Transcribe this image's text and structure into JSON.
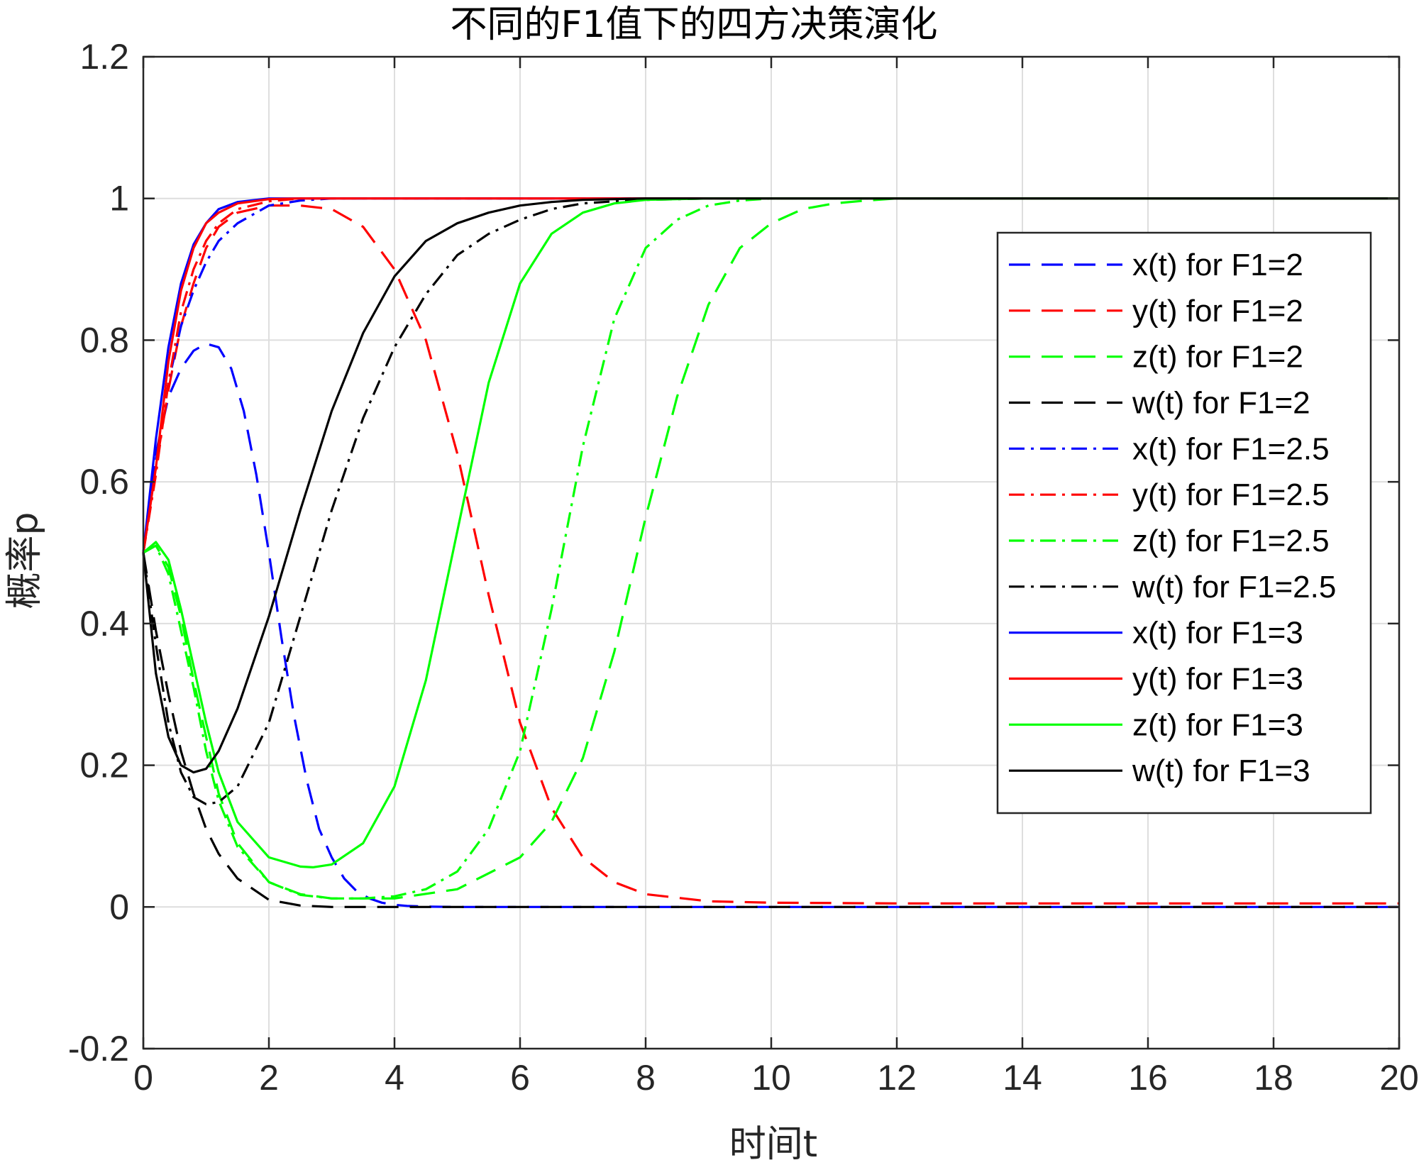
{
  "chart_data": {
    "type": "line",
    "title": "不同的F1值下的四方决策演化",
    "xlabel": "时间t",
    "ylabel": "概率p",
    "xlim": [
      0,
      20
    ],
    "ylim": [
      -0.2,
      1.2
    ],
    "xticks": [
      0,
      2,
      4,
      6,
      8,
      10,
      12,
      14,
      16,
      18,
      20
    ],
    "yticks": [
      -0.2,
      0,
      0.2,
      0.4,
      0.6,
      0.8,
      1,
      1.2
    ],
    "xtick_labels": [
      "0",
      "2",
      "4",
      "6",
      "8",
      "10",
      "12",
      "14",
      "16",
      "18",
      "20"
    ],
    "ytick_labels": [
      "-0.2",
      "0",
      "0.2",
      "0.4",
      "0.6",
      "0.8",
      "1",
      "1.2"
    ],
    "grid": true,
    "legend_position": "right",
    "colors": {
      "x": "#0000ff",
      "y": "#ff0000",
      "z": "#00ff00",
      "w": "#000000"
    },
    "series": [
      {
        "name": "x(t) for F1=2",
        "color": "#0000ff",
        "style": "dashed",
        "x": [
          0,
          0.2,
          0.4,
          0.6,
          0.8,
          1.0,
          1.2,
          1.4,
          1.6,
          1.8,
          2.0,
          2.2,
          2.4,
          2.6,
          2.8,
          3.0,
          3.2,
          3.4,
          3.6,
          3.8,
          4.0,
          4.2,
          4.5,
          5,
          6,
          8,
          10,
          14,
          20
        ],
        "y": [
          0.5,
          0.64,
          0.72,
          0.76,
          0.785,
          0.795,
          0.79,
          0.76,
          0.7,
          0.61,
          0.5,
          0.38,
          0.27,
          0.18,
          0.11,
          0.07,
          0.04,
          0.022,
          0.012,
          0.006,
          0.003,
          0.0015,
          0.0005,
          0,
          0,
          0,
          0,
          0,
          0
        ]
      },
      {
        "name": "y(t) for F1=2",
        "color": "#ff0000",
        "style": "dashed",
        "x": [
          0,
          0.2,
          0.4,
          0.6,
          0.8,
          1.0,
          1.2,
          1.5,
          2.0,
          2.5,
          3.0,
          3.5,
          4.0,
          4.5,
          5.0,
          5.5,
          6.0,
          6.5,
          7.0,
          7.5,
          8.0,
          9,
          10,
          12,
          15,
          20
        ],
        "y": [
          0.5,
          0.62,
          0.73,
          0.82,
          0.88,
          0.93,
          0.96,
          0.98,
          0.99,
          0.99,
          0.985,
          0.96,
          0.9,
          0.8,
          0.64,
          0.44,
          0.26,
          0.14,
          0.07,
          0.035,
          0.018,
          0.008,
          0.006,
          0.005,
          0.005,
          0.005
        ]
      },
      {
        "name": "z(t) for F1=2",
        "color": "#00ff00",
        "style": "dashed",
        "x": [
          0,
          0.2,
          0.4,
          0.6,
          0.8,
          1.0,
          1.2,
          1.5,
          2.0,
          2.5,
          3.0,
          4.0,
          5.0,
          6.0,
          6.5,
          7.0,
          7.5,
          8.0,
          8.5,
          9.0,
          9.5,
          10.0,
          10.5,
          11.0,
          11.5,
          12,
          14,
          20
        ],
        "y": [
          0.5,
          0.51,
          0.48,
          0.41,
          0.32,
          0.24,
          0.16,
          0.09,
          0.035,
          0.018,
          0.012,
          0.012,
          0.025,
          0.07,
          0.12,
          0.21,
          0.36,
          0.55,
          0.72,
          0.85,
          0.93,
          0.965,
          0.985,
          0.993,
          0.997,
          1,
          1,
          1
        ]
      },
      {
        "name": "w(t) for F1=2",
        "color": "#000000",
        "style": "dashed",
        "x": [
          0,
          0.2,
          0.4,
          0.6,
          0.8,
          1.0,
          1.2,
          1.5,
          2.0,
          2.5,
          3.0,
          4,
          6,
          10,
          20
        ],
        "y": [
          0.5,
          0.39,
          0.3,
          0.22,
          0.16,
          0.11,
          0.075,
          0.04,
          0.01,
          0.002,
          0,
          0,
          0,
          0,
          0
        ]
      },
      {
        "name": "x(t) for F1=2.5",
        "color": "#0000ff",
        "style": "dashdot",
        "x": [
          0,
          0.2,
          0.4,
          0.6,
          0.8,
          1.0,
          1.2,
          1.5,
          2.0,
          2.5,
          3.0,
          4,
          6,
          10,
          20
        ],
        "y": [
          0.5,
          0.63,
          0.74,
          0.82,
          0.87,
          0.91,
          0.94,
          0.965,
          0.99,
          0.997,
          1,
          1,
          1,
          1,
          1
        ]
      },
      {
        "name": "y(t) for F1=2.5",
        "color": "#ff0000",
        "style": "dashdot",
        "x": [
          0,
          0.2,
          0.4,
          0.6,
          0.8,
          1.0,
          1.2,
          1.5,
          2.0,
          2.5,
          3.0,
          4,
          6,
          10,
          20
        ],
        "y": [
          0.5,
          0.61,
          0.74,
          0.84,
          0.9,
          0.94,
          0.965,
          0.985,
          0.996,
          1,
          1,
          1,
          1,
          1,
          1
        ]
      },
      {
        "name": "z(t) for F1=2.5",
        "color": "#00ff00",
        "style": "dashdot",
        "x": [
          0,
          0.2,
          0.4,
          0.6,
          0.8,
          1.0,
          1.2,
          1.5,
          2.0,
          2.5,
          3.0,
          3.5,
          4.0,
          4.5,
          5.0,
          5.5,
          6.0,
          6.5,
          7.0,
          7.5,
          8.0,
          8.5,
          9.0,
          9.5,
          10,
          12,
          20
        ],
        "y": [
          0.5,
          0.51,
          0.47,
          0.39,
          0.31,
          0.22,
          0.15,
          0.085,
          0.035,
          0.017,
          0.012,
          0.012,
          0.015,
          0.025,
          0.05,
          0.11,
          0.22,
          0.42,
          0.65,
          0.83,
          0.93,
          0.97,
          0.99,
          0.997,
          1,
          1,
          1
        ]
      },
      {
        "name": "w(t) for F1=2.5",
        "color": "#000000",
        "style": "dashdot",
        "x": [
          0,
          0.2,
          0.4,
          0.6,
          0.8,
          1.0,
          1.2,
          1.5,
          2.0,
          2.5,
          3.0,
          3.5,
          4.0,
          4.5,
          5.0,
          5.5,
          6.0,
          6.5,
          7.0,
          7.5,
          8.0,
          9,
          10,
          12,
          20
        ],
        "y": [
          0.5,
          0.37,
          0.26,
          0.19,
          0.155,
          0.145,
          0.148,
          0.17,
          0.26,
          0.41,
          0.56,
          0.69,
          0.79,
          0.865,
          0.92,
          0.95,
          0.97,
          0.985,
          0.993,
          0.996,
          0.998,
          1,
          1,
          1,
          1
        ]
      },
      {
        "name": "x(t) for F1=3",
        "color": "#0000ff",
        "style": "solid",
        "x": [
          0,
          0.2,
          0.4,
          0.6,
          0.8,
          1.0,
          1.2,
          1.5,
          2.0,
          2.5,
          3.0,
          4,
          6,
          10,
          20
        ],
        "y": [
          0.5,
          0.66,
          0.79,
          0.88,
          0.935,
          0.965,
          0.985,
          0.995,
          1,
          1,
          1,
          1,
          1,
          1,
          1
        ]
      },
      {
        "name": "y(t) for F1=3",
        "color": "#ff0000",
        "style": "solid",
        "x": [
          0,
          0.2,
          0.4,
          0.6,
          0.8,
          1.0,
          1.2,
          1.5,
          2.0,
          2.5,
          3.0,
          4,
          6,
          10,
          20
        ],
        "y": [
          0.5,
          0.62,
          0.77,
          0.87,
          0.93,
          0.965,
          0.98,
          0.993,
          0.999,
          1,
          1,
          1,
          1,
          1,
          1
        ]
      },
      {
        "name": "z(t) for F1=3",
        "color": "#00ff00",
        "style": "solid",
        "x": [
          0,
          0.2,
          0.4,
          0.6,
          0.8,
          1.0,
          1.2,
          1.5,
          2.0,
          2.5,
          2.7,
          3.0,
          3.5,
          4.0,
          4.5,
          5.0,
          5.5,
          6.0,
          6.5,
          7.0,
          7.5,
          8.0,
          9,
          10,
          20
        ],
        "y": [
          0.5,
          0.515,
          0.49,
          0.42,
          0.34,
          0.26,
          0.19,
          0.12,
          0.07,
          0.057,
          0.056,
          0.06,
          0.09,
          0.17,
          0.32,
          0.53,
          0.74,
          0.88,
          0.95,
          0.98,
          0.993,
          0.998,
          1,
          1,
          1
        ]
      },
      {
        "name": "w(t) for F1=3",
        "color": "#000000",
        "style": "solid",
        "x": [
          0,
          0.2,
          0.4,
          0.6,
          0.8,
          1.0,
          1.2,
          1.5,
          2.0,
          2.5,
          3.0,
          3.5,
          4.0,
          4.5,
          5.0,
          5.5,
          6.0,
          6.5,
          7.0,
          7.5,
          8,
          10,
          20
        ],
        "y": [
          0.5,
          0.33,
          0.24,
          0.2,
          0.19,
          0.195,
          0.22,
          0.28,
          0.41,
          0.56,
          0.7,
          0.81,
          0.89,
          0.94,
          0.965,
          0.98,
          0.99,
          0.995,
          0.998,
          0.999,
          1,
          1,
          1
        ]
      }
    ]
  }
}
